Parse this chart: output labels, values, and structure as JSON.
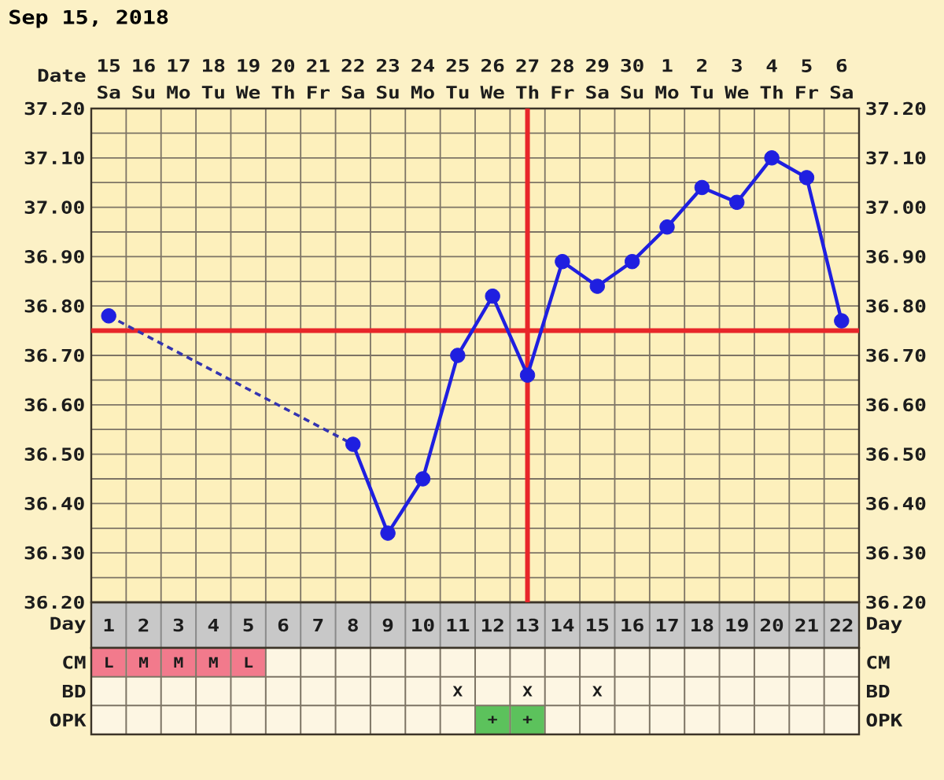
{
  "chart_data": [
    {
      "type": "line",
      "title": "Sep 15, 2018",
      "xlabel": "Day",
      "x2label": "Date",
      "x": [
        1,
        2,
        3,
        4,
        5,
        6,
        7,
        8,
        9,
        10,
        11,
        12,
        13,
        14,
        15,
        16,
        17,
        18,
        19,
        20,
        21,
        22
      ],
      "series": [
        {
          "color": "#1f1fe0",
          "values": [
            36.78,
            null,
            null,
            null,
            null,
            null,
            null,
            36.52,
            36.34,
            36.45,
            36.7,
            36.82,
            36.66,
            36.89,
            36.84,
            36.89,
            36.96,
            37.04,
            37.01,
            37.1,
            37.06,
            36.77
          ]
        },
        {
          "type": "line",
          "x": [
            1,
            8
          ],
          "values": [
            36.78,
            36.52
          ],
          "color": "#3434b0",
          "line_style": "dashed",
          "marker": "none"
        }
      ],
      "xlim": [
        0.5,
        22.5
      ],
      "xticks": [
        1,
        2,
        3,
        4,
        5,
        6,
        7,
        8,
        9,
        10,
        11,
        12,
        13,
        14,
        15,
        16,
        17,
        18,
        19,
        20,
        21,
        22
      ],
      "x2lim": [
        "2018-09-14T12:00",
        "2018-10-06T12:00"
      ],
      "x2ticks": [
        {
          "value": "2018-09-15",
          "label": "15 Sa"
        },
        {
          "value": "2018-09-16",
          "label": "16 Su"
        },
        {
          "value": "2018-09-17",
          "label": "17 Mo"
        },
        {
          "value": "2018-09-18",
          "label": "18 Tu"
        },
        {
          "value": "2018-09-19",
          "label": "19 We"
        },
        {
          "value": "2018-09-20",
          "label": "20 Th"
        },
        {
          "value": "2018-09-21",
          "label": "21 Fr"
        },
        {
          "value": "2018-09-22",
          "label": "22 Sa"
        },
        {
          "value": "2018-09-23",
          "label": "23 Su"
        },
        {
          "value": "2018-09-24",
          "label": "24 Mo"
        },
        {
          "value": "2018-09-25",
          "label": "25 Tu"
        },
        {
          "value": "2018-09-26",
          "label": "26 We"
        },
        {
          "value": "2018-09-27",
          "label": "27 Th"
        },
        {
          "value": "2018-09-28",
          "label": "28 Fr"
        },
        {
          "value": "2018-09-29",
          "label": "29 Sa"
        },
        {
          "value": "2018-09-30",
          "label": "30 Su"
        },
        {
          "value": "2018-10-01",
          "label": "1 Mo"
        },
        {
          "value": "2018-10-02",
          "label": "2 Tu"
        },
        {
          "value": "2018-10-03",
          "label": "3 We"
        },
        {
          "value": "2018-10-04",
          "label": "4 Th"
        },
        {
          "value": "2018-10-05",
          "label": "5 Fr"
        },
        {
          "value": "2018-10-06",
          "label": "6 Sa"
        }
      ],
      "ylim": [
        36.2,
        37.2
      ],
      "yticks": [
        {
          "value": 36.2,
          "label": "36.20"
        },
        {
          "value": 36.3,
          "label": "36.30"
        },
        {
          "value": 36.4,
          "label": "36.40"
        },
        {
          "value": 36.5,
          "label": "36.50"
        },
        {
          "value": 36.6,
          "label": "36.60"
        },
        {
          "value": 36.7,
          "label": "36.70"
        },
        {
          "value": 36.8,
          "label": "36.80"
        },
        {
          "value": 36.9,
          "label": "36.90"
        },
        {
          "value": 37.0,
          "label": "37.00"
        },
        {
          "value": 37.1,
          "label": "37.10"
        },
        {
          "value": 37.2,
          "label": "37.20"
        }
      ],
      "y2lim": [
        36.2,
        37.2
      ],
      "y2ticks": [
        {
          "value": 36.2,
          "label": "36.20"
        },
        {
          "value": 36.3,
          "label": "36.30"
        },
        {
          "value": 36.4,
          "label": "36.40"
        },
        {
          "value": 36.5,
          "label": "36.50"
        },
        {
          "value": 36.6,
          "label": "36.60"
        },
        {
          "value": 36.7,
          "label": "36.70"
        },
        {
          "value": 36.8,
          "label": "36.80"
        },
        {
          "value": 36.9,
          "label": "36.90"
        },
        {
          "value": 37.0,
          "label": "37.00"
        },
        {
          "value": 37.1,
          "label": "37.10"
        },
        {
          "value": 37.2,
          "label": "37.20"
        }
      ],
      "ref_lines": [
        {
          "axis": "y",
          "value": 36.75,
          "color": "#e8262a"
        },
        {
          "axis": "x",
          "value": 13,
          "color": "#e8262a"
        }
      ],
      "grid": true,
      "marker": "circle",
      "line_style": "solid"
    },
    {
      "type": "other",
      "categories": [
        null,
        null,
        null,
        null,
        null,
        null,
        null,
        null,
        null,
        null,
        null,
        null,
        null,
        null,
        null,
        null,
        null,
        null,
        null,
        null,
        null,
        null
      ],
      "y_categories": [
        "CM",
        "BD",
        "OPK"
      ],
      "y2_categories": [
        "CM",
        "BD",
        "OPK"
      ],
      "cell_labels": [
        [
          "L",
          "M",
          "M",
          "M",
          "L",
          null,
          null,
          null,
          null,
          null,
          null,
          null,
          null,
          null,
          null,
          null,
          null,
          null,
          null,
          null,
          null,
          null
        ],
        [
          null,
          null,
          null,
          null,
          null,
          null,
          null,
          null,
          null,
          null,
          "X",
          null,
          "X",
          null,
          "X",
          null,
          null,
          null,
          null,
          null,
          null,
          null
        ],
        [
          null,
          null,
          null,
          null,
          null,
          null,
          null,
          null,
          null,
          null,
          null,
          "+",
          "+",
          null,
          null,
          null,
          null,
          null,
          null,
          null,
          null,
          null
        ]
      ],
      "colors": [
        [
          "#f27a8c",
          "#f27a8c",
          "#f27a8c",
          "#f27a8c",
          "#f27a8c",
          null,
          null,
          null,
          null,
          null,
          null,
          null,
          null,
          null,
          null,
          null,
          null,
          null,
          null,
          null,
          null,
          null
        ],
        [
          null,
          null,
          null,
          null,
          null,
          null,
          null,
          null,
          null,
          null,
          null,
          null,
          null,
          null,
          null,
          null,
          null,
          null,
          null,
          null,
          null,
          null
        ],
        [
          null,
          null,
          null,
          null,
          null,
          null,
          null,
          null,
          null,
          null,
          null,
          "#5cc25c",
          "#5cc25c",
          null,
          null,
          null,
          null,
          null,
          null,
          null,
          null,
          null
        ]
      ]
    }
  ]
}
